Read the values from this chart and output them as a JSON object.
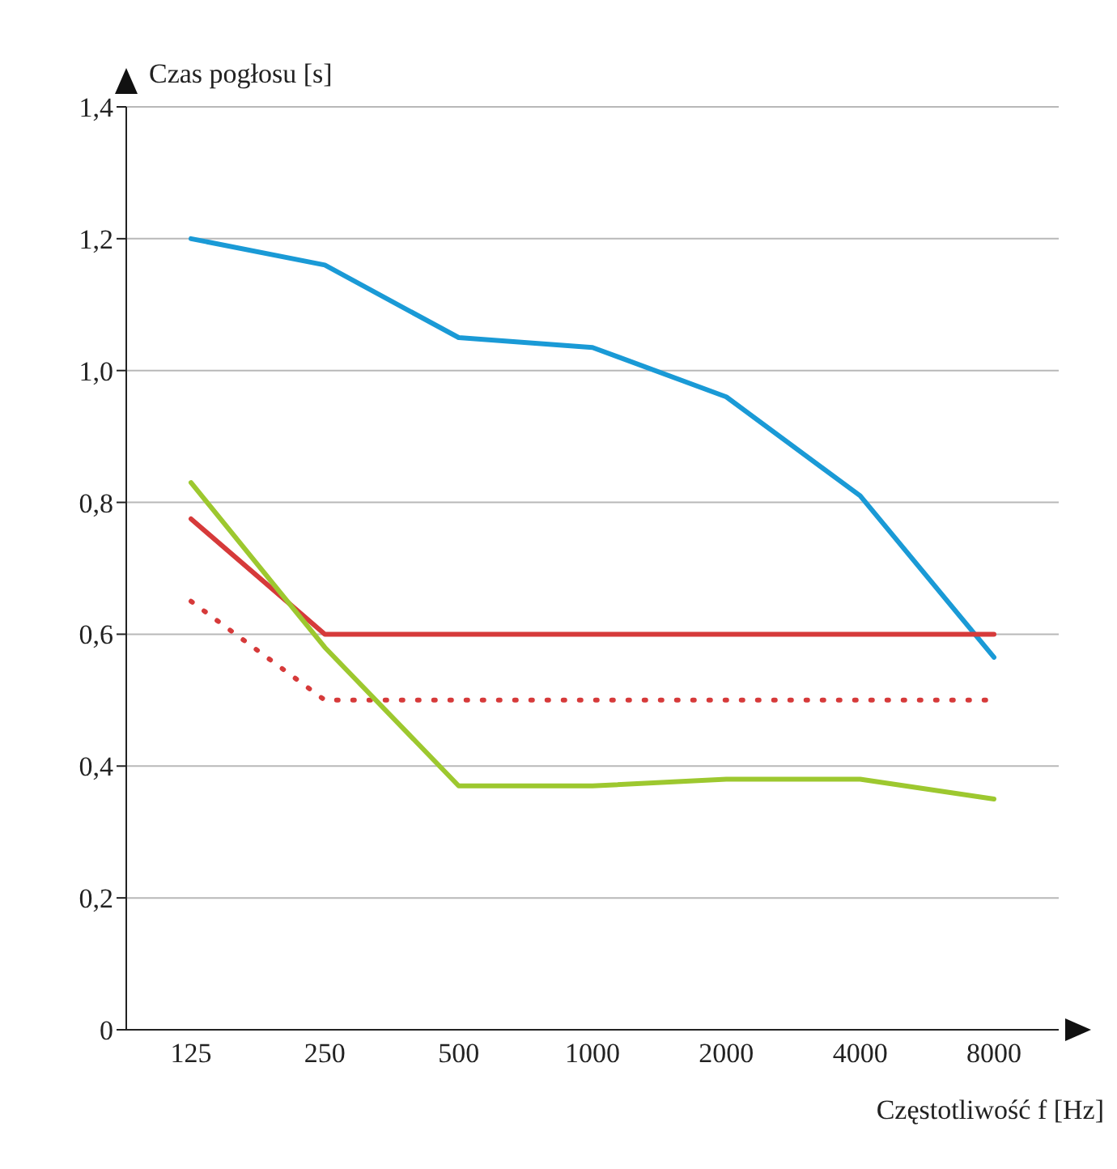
{
  "chart_data": {
    "type": "line",
    "ylabel": "Czas pogłosu [s]",
    "xlabel": "Częstotliwość f [Hz]",
    "categories": [
      "125",
      "250",
      "500",
      "1000",
      "2000",
      "4000",
      "8000"
    ],
    "series": [
      {
        "color": "#1a9ad6",
        "values": [
          1.2,
          1.16,
          1.05,
          1.035,
          0.96,
          0.81,
          0.565
        ]
      },
      {
        "color": "#d63a3a",
        "values": [
          0.775,
          0.6,
          0.6,
          0.6,
          0.6,
          0.6,
          0.6
        ]
      },
      {
        "color": "#d63a3a",
        "line_style": "dotted",
        "values": [
          0.65,
          0.5,
          0.5,
          0.5,
          0.5,
          0.5,
          0.5
        ]
      },
      {
        "color": "#9dc82f",
        "values": [
          0.83,
          0.58,
          0.37,
          0.37,
          0.38,
          0.38,
          0.35
        ]
      }
    ],
    "ylim": [
      0,
      1.4
    ],
    "yticks": [
      {
        "value": 0,
        "label": "0"
      },
      {
        "value": 0.2,
        "label": "0,2"
      },
      {
        "value": 0.4,
        "label": "0,4"
      },
      {
        "value": 0.6,
        "label": "0,6"
      },
      {
        "value": 0.8,
        "label": "0,8"
      },
      {
        "value": 1,
        "label": "1,0"
      },
      {
        "value": 1.2,
        "label": "1,2"
      },
      {
        "value": 1.4,
        "label": "1,4"
      }
    ],
    "grid": "y",
    "marker": "none",
    "line_style": "solid"
  }
}
